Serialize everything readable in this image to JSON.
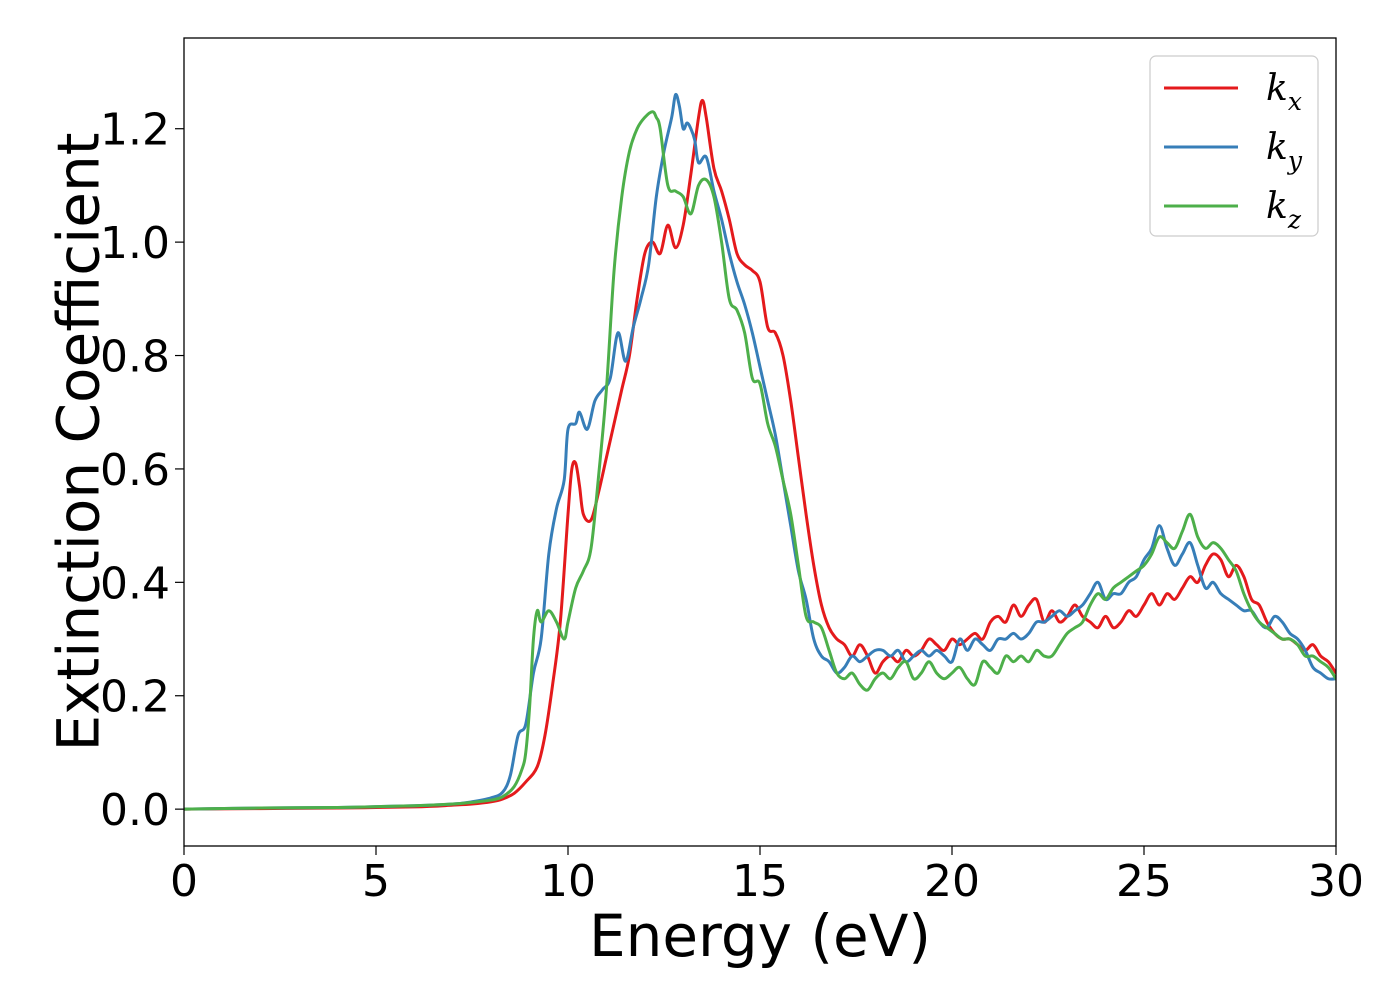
{
  "chart_data": {
    "type": "line",
    "xlabel": "Energy (eV)",
    "ylabel": "Extinction Coefficient",
    "xlim": [
      0,
      30
    ],
    "ylim": [
      -0.065,
      1.36
    ],
    "xticks": [
      0,
      5,
      10,
      15,
      20,
      25,
      30
    ],
    "yticks": [
      0.0,
      0.2,
      0.4,
      0.6,
      0.8,
      1.0,
      1.2
    ],
    "xtick_labels": [
      "0",
      "5",
      "10",
      "15",
      "20",
      "25",
      "30"
    ],
    "ytick_labels": [
      "0.0",
      "0.2",
      "0.4",
      "0.6",
      "0.8",
      "1.0",
      "1.2"
    ],
    "grid": false,
    "legend_position": "top-right",
    "series": [
      {
        "name": "k_x",
        "label_main": "k",
        "label_sub": "x",
        "color": "#e41a1c",
        "x": [
          0,
          2,
          4,
          6,
          7,
          7.5,
          8,
          8.3,
          8.6,
          8.9,
          9.2,
          9.4,
          9.6,
          9.8,
          10.0,
          10.1,
          10.2,
          10.3,
          10.4,
          10.6,
          10.8,
          11.0,
          11.2,
          11.4,
          11.6,
          11.8,
          12.0,
          12.2,
          12.4,
          12.6,
          12.8,
          13.0,
          13.2,
          13.4,
          13.5,
          13.6,
          13.8,
          14.0,
          14.2,
          14.4,
          14.6,
          14.8,
          15.0,
          15.2,
          15.4,
          15.6,
          15.8,
          16.0,
          16.2,
          16.4,
          16.6,
          16.8,
          17.0,
          17.2,
          17.4,
          17.6,
          17.8,
          18.0,
          18.2,
          18.4,
          18.6,
          18.8,
          19.0,
          19.2,
          19.4,
          19.6,
          19.8,
          20.0,
          20.2,
          20.4,
          20.6,
          20.8,
          21.0,
          21.2,
          21.4,
          21.6,
          21.8,
          22.0,
          22.2,
          22.4,
          22.6,
          22.8,
          23.0,
          23.2,
          23.4,
          23.6,
          23.8,
          24.0,
          24.2,
          24.4,
          24.6,
          24.8,
          25.0,
          25.2,
          25.4,
          25.6,
          25.8,
          26.0,
          26.2,
          26.4,
          26.6,
          26.8,
          27.0,
          27.2,
          27.4,
          27.6,
          27.8,
          28.0,
          28.2,
          28.4,
          28.6,
          28.8,
          29.0,
          29.2,
          29.4,
          29.6,
          29.8,
          30.0
        ],
        "values": [
          0.0,
          0.001,
          0.002,
          0.004,
          0.007,
          0.009,
          0.013,
          0.018,
          0.028,
          0.048,
          0.075,
          0.13,
          0.22,
          0.33,
          0.52,
          0.6,
          0.61,
          0.57,
          0.52,
          0.51,
          0.56,
          0.62,
          0.68,
          0.74,
          0.8,
          0.9,
          0.98,
          1.0,
          0.98,
          1.03,
          0.99,
          1.03,
          1.12,
          1.22,
          1.25,
          1.22,
          1.13,
          1.09,
          1.04,
          0.98,
          0.96,
          0.95,
          0.93,
          0.85,
          0.84,
          0.8,
          0.72,
          0.62,
          0.52,
          0.43,
          0.36,
          0.32,
          0.3,
          0.29,
          0.27,
          0.29,
          0.27,
          0.24,
          0.26,
          0.27,
          0.26,
          0.28,
          0.27,
          0.28,
          0.3,
          0.29,
          0.28,
          0.3,
          0.29,
          0.3,
          0.31,
          0.3,
          0.33,
          0.34,
          0.33,
          0.36,
          0.34,
          0.36,
          0.37,
          0.33,
          0.35,
          0.33,
          0.34,
          0.36,
          0.34,
          0.33,
          0.32,
          0.34,
          0.32,
          0.33,
          0.35,
          0.34,
          0.36,
          0.38,
          0.36,
          0.38,
          0.37,
          0.39,
          0.41,
          0.4,
          0.43,
          0.45,
          0.44,
          0.41,
          0.43,
          0.41,
          0.37,
          0.36,
          0.33,
          0.31,
          0.3,
          0.3,
          0.29,
          0.28,
          0.29,
          0.27,
          0.26,
          0.24
        ]
      },
      {
        "name": "k_y",
        "label_main": "k",
        "label_sub": "y",
        "color": "#377eb8",
        "x": [
          0,
          2,
          4,
          6,
          7,
          7.5,
          8,
          8.3,
          8.5,
          8.7,
          8.9,
          9.1,
          9.3,
          9.5,
          9.7,
          9.9,
          10.0,
          10.2,
          10.3,
          10.5,
          10.7,
          10.9,
          11.1,
          11.3,
          11.5,
          11.7,
          11.9,
          12.1,
          12.3,
          12.5,
          12.7,
          12.8,
          12.9,
          13.0,
          13.1,
          13.2,
          13.3,
          13.4,
          13.6,
          13.8,
          14.0,
          14.2,
          14.4,
          14.6,
          14.8,
          15.0,
          15.2,
          15.4,
          15.6,
          15.8,
          16.0,
          16.2,
          16.4,
          16.6,
          16.8,
          17.0,
          17.2,
          17.4,
          17.6,
          17.8,
          18.0,
          18.2,
          18.4,
          18.6,
          18.8,
          19.0,
          19.2,
          19.4,
          19.6,
          19.8,
          20.0,
          20.2,
          20.4,
          20.6,
          20.8,
          21.0,
          21.2,
          21.4,
          21.6,
          21.8,
          22.0,
          22.2,
          22.4,
          22.6,
          22.8,
          23.0,
          23.2,
          23.4,
          23.6,
          23.8,
          24.0,
          24.2,
          24.4,
          24.6,
          24.8,
          25.0,
          25.2,
          25.4,
          25.6,
          25.8,
          26.0,
          26.2,
          26.4,
          26.6,
          26.8,
          27.0,
          27.2,
          27.4,
          27.6,
          27.8,
          28.0,
          28.2,
          28.4,
          28.6,
          28.8,
          29.0,
          29.2,
          29.4,
          29.6,
          29.8,
          30.0
        ],
        "values": [
          0.0,
          0.002,
          0.003,
          0.006,
          0.009,
          0.013,
          0.02,
          0.03,
          0.06,
          0.13,
          0.15,
          0.24,
          0.3,
          0.45,
          0.53,
          0.58,
          0.67,
          0.68,
          0.7,
          0.67,
          0.72,
          0.74,
          0.76,
          0.84,
          0.79,
          0.85,
          0.9,
          0.96,
          1.08,
          1.16,
          1.22,
          1.26,
          1.24,
          1.2,
          1.21,
          1.2,
          1.18,
          1.14,
          1.15,
          1.09,
          1.04,
          0.98,
          0.93,
          0.89,
          0.84,
          0.78,
          0.72,
          0.66,
          0.58,
          0.5,
          0.42,
          0.37,
          0.3,
          0.27,
          0.26,
          0.24,
          0.25,
          0.27,
          0.26,
          0.27,
          0.28,
          0.28,
          0.27,
          0.28,
          0.26,
          0.27,
          0.28,
          0.27,
          0.28,
          0.27,
          0.26,
          0.3,
          0.28,
          0.3,
          0.29,
          0.28,
          0.3,
          0.3,
          0.31,
          0.3,
          0.31,
          0.33,
          0.33,
          0.34,
          0.35,
          0.34,
          0.35,
          0.36,
          0.38,
          0.4,
          0.37,
          0.38,
          0.38,
          0.4,
          0.41,
          0.44,
          0.46,
          0.5,
          0.46,
          0.43,
          0.45,
          0.47,
          0.43,
          0.39,
          0.4,
          0.38,
          0.37,
          0.36,
          0.35,
          0.35,
          0.33,
          0.32,
          0.34,
          0.33,
          0.31,
          0.3,
          0.28,
          0.25,
          0.24,
          0.23,
          0.23
        ]
      },
      {
        "name": "k_z",
        "label_main": "k",
        "label_sub": "z",
        "color": "#4daf4a",
        "x": [
          0,
          2,
          4,
          6,
          7,
          7.5,
          8,
          8.3,
          8.6,
          8.8,
          8.9,
          9.0,
          9.1,
          9.2,
          9.3,
          9.5,
          9.7,
          9.9,
          10.0,
          10.2,
          10.4,
          10.6,
          10.8,
          11.0,
          11.2,
          11.4,
          11.6,
          11.8,
          12.0,
          12.2,
          12.3,
          12.4,
          12.6,
          12.8,
          13.0,
          13.2,
          13.4,
          13.6,
          13.8,
          14.0,
          14.2,
          14.4,
          14.6,
          14.8,
          15.0,
          15.2,
          15.4,
          15.6,
          15.8,
          16.0,
          16.2,
          16.4,
          16.6,
          16.8,
          17.0,
          17.2,
          17.4,
          17.6,
          17.8,
          18.0,
          18.2,
          18.4,
          18.6,
          18.8,
          19.0,
          19.2,
          19.4,
          19.6,
          19.8,
          20.0,
          20.2,
          20.4,
          20.6,
          20.8,
          21.0,
          21.2,
          21.4,
          21.6,
          21.8,
          22.0,
          22.2,
          22.4,
          22.6,
          22.8,
          23.0,
          23.2,
          23.4,
          23.6,
          23.8,
          24.0,
          24.2,
          24.4,
          24.6,
          24.8,
          25.0,
          25.2,
          25.4,
          25.6,
          25.8,
          26.0,
          26.2,
          26.4,
          26.6,
          26.8,
          27.0,
          27.2,
          27.4,
          27.6,
          27.8,
          28.0,
          28.2,
          28.4,
          28.6,
          28.8,
          29.0,
          29.2,
          29.4,
          29.6,
          29.8,
          30.0
        ],
        "values": [
          0.0,
          0.002,
          0.003,
          0.006,
          0.009,
          0.012,
          0.016,
          0.022,
          0.04,
          0.07,
          0.1,
          0.18,
          0.3,
          0.35,
          0.33,
          0.35,
          0.33,
          0.3,
          0.33,
          0.39,
          0.42,
          0.46,
          0.59,
          0.74,
          0.95,
          1.08,
          1.16,
          1.2,
          1.22,
          1.23,
          1.22,
          1.2,
          1.1,
          1.09,
          1.08,
          1.05,
          1.1,
          1.11,
          1.08,
          1.0,
          0.9,
          0.88,
          0.84,
          0.76,
          0.75,
          0.68,
          0.64,
          0.58,
          0.52,
          0.43,
          0.34,
          0.33,
          0.32,
          0.28,
          0.24,
          0.23,
          0.24,
          0.22,
          0.21,
          0.23,
          0.24,
          0.23,
          0.25,
          0.26,
          0.23,
          0.24,
          0.26,
          0.24,
          0.23,
          0.24,
          0.25,
          0.23,
          0.22,
          0.26,
          0.25,
          0.24,
          0.27,
          0.26,
          0.27,
          0.26,
          0.28,
          0.27,
          0.27,
          0.29,
          0.31,
          0.32,
          0.33,
          0.36,
          0.38,
          0.37,
          0.39,
          0.4,
          0.41,
          0.42,
          0.43,
          0.45,
          0.48,
          0.47,
          0.46,
          0.49,
          0.52,
          0.48,
          0.46,
          0.47,
          0.46,
          0.44,
          0.42,
          0.38,
          0.35,
          0.33,
          0.32,
          0.31,
          0.3,
          0.3,
          0.29,
          0.27,
          0.27,
          0.26,
          0.25,
          0.23
        ]
      }
    ]
  }
}
